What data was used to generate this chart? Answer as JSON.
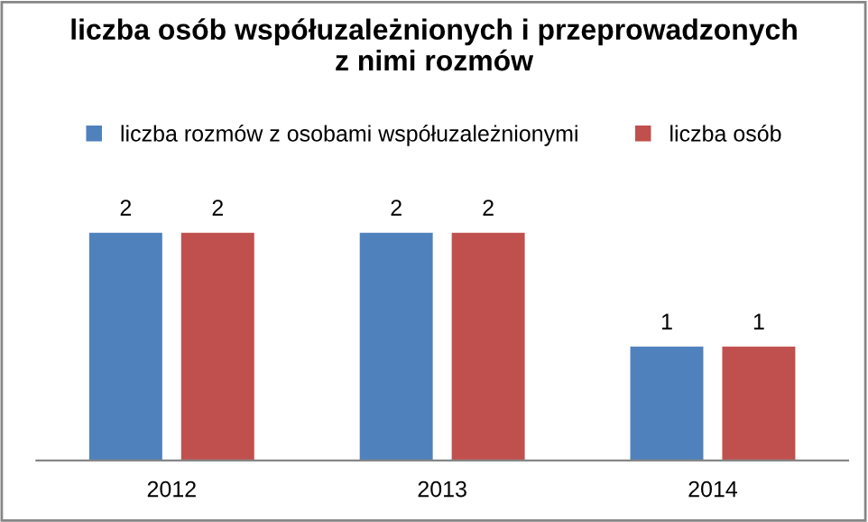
{
  "chart_data": {
    "type": "bar",
    "title": "liczba osób współuzależnionych i przeprowadzonych\nz nimi rozmów",
    "categories": [
      "2012",
      "2013",
      "2014"
    ],
    "series": [
      {
        "name": "liczba rozmów z osobami współuzależnionymi",
        "color": "#4f81bd",
        "values": [
          2,
          2,
          1
        ]
      },
      {
        "name": "liczba osób",
        "color": "#c0504d",
        "values": [
          2,
          2,
          1
        ]
      }
    ],
    "data_labels": true,
    "legend": "top",
    "grid": false
  }
}
